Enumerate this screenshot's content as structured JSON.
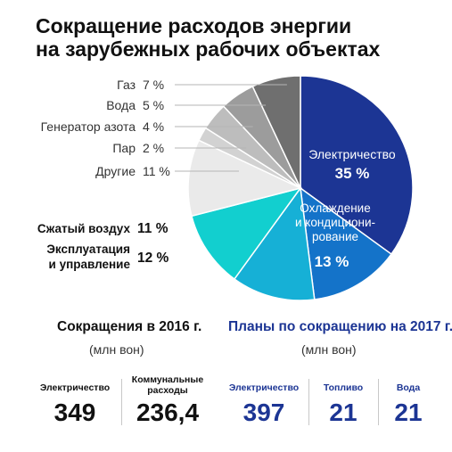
{
  "title_lines": [
    "Сокращение расходов энергии",
    "на зарубежных рабочих объектах"
  ],
  "chart_data": {
    "type": "pie",
    "start": "12 o'clock, clockwise",
    "slices": [
      {
        "name": "Электричество",
        "value": 35,
        "label": "35 %",
        "color": "#1c3594"
      },
      {
        "name": "Охлаждение и кондиционирование",
        "value": 13,
        "label": "13 %",
        "color": "#1473c9"
      },
      {
        "name": "Эксплуатация и управление",
        "value": 12,
        "label": "12 %",
        "color": "#16b0d6"
      },
      {
        "name": "Сжатый воздух",
        "value": 11,
        "label": "11 %",
        "color": "#12cfcf"
      },
      {
        "name": "Другие",
        "value": 11,
        "label": "11 %",
        "color": "#eaeaea"
      },
      {
        "name": "Пар",
        "value": 2,
        "label": "2 %",
        "color": "#d2d2d2"
      },
      {
        "name": "Генератор азота",
        "value": 4,
        "label": "4 %",
        "color": "#bdbdbd"
      },
      {
        "name": "Вода",
        "value": 5,
        "label": "5 %",
        "color": "#9c9c9c"
      },
      {
        "name": "Газ",
        "value": 7,
        "label": "7 %",
        "color": "#6f6f6f"
      }
    ],
    "inside_labels": [
      {
        "lines": [
          "Электричество"
        ],
        "value": "35 %"
      },
      {
        "lines": [
          "Охлаждение",
          "и кондициони-",
          "рование"
        ],
        "value": "13 %"
      }
    ],
    "outside_labels": [
      {
        "lines": [
          "Газ"
        ],
        "value": "7 %",
        "bold": false
      },
      {
        "lines": [
          "Вода"
        ],
        "value": "5 %",
        "bold": false
      },
      {
        "lines": [
          "Генератор азота"
        ],
        "value": "4 %",
        "bold": false
      },
      {
        "lines": [
          "Пар"
        ],
        "value": "2 %",
        "bold": false
      },
      {
        "lines": [
          "Другие"
        ],
        "value": "11 %",
        "bold": false
      },
      {
        "lines": [
          "Сжатый воздух"
        ],
        "value": "11 %",
        "bold": true
      },
      {
        "lines": [
          "Эксплуатация",
          "и управление"
        ],
        "value": "12 %",
        "bold": true
      }
    ]
  },
  "summary_2016": {
    "title": "Сокращения в 2016 г.",
    "unit": "(млн вон)",
    "items": [
      {
        "label": "Электричество",
        "value": "349"
      },
      {
        "label": "Коммунальные расходы",
        "value": "236,4"
      }
    ]
  },
  "plans_2017": {
    "title": "Планы по сокращению на 2017 г.",
    "unit": "(млн вон)",
    "items": [
      {
        "label": "Электричество",
        "value": "397"
      },
      {
        "label": "Топливо",
        "value": "21"
      },
      {
        "label": "Вода",
        "value": "21"
      }
    ]
  },
  "colors": {
    "accent_blue": "#1c3594",
    "text_dark": "#111111",
    "leader_line": "#b5b5b5"
  }
}
